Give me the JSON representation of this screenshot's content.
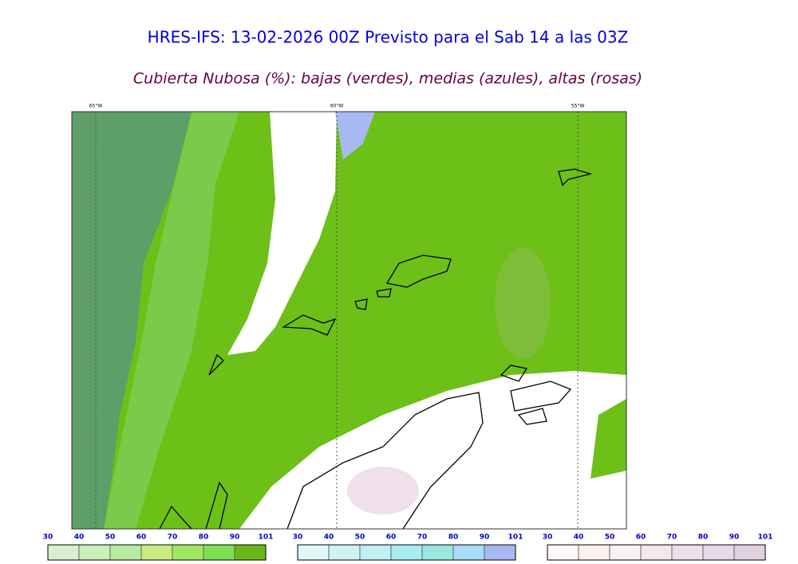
{
  "header": {
    "title": "HRES-IFS: 13-02-2026 00Z Previsto para el Sab 14 a las 03Z",
    "subtitle": "Cubierta Nubosa (%): bajas (verdes), medias (azules), altas (rosas)"
  },
  "map": {
    "lon_labels": [
      "65°W",
      "60°W",
      "55°W"
    ]
  },
  "colorbars": [
    {
      "labels": [
        30,
        40,
        50,
        60,
        70,
        80,
        90,
        101
      ],
      "colors": [
        "#d8f0d0",
        "#c8f0b8",
        "#b8eca0",
        "#c8ec80",
        "#a0e860",
        "#7ce050",
        "#68b818"
      ]
    },
    {
      "labels": [
        30,
        40,
        50,
        60,
        70,
        80,
        90,
        101
      ],
      "colors": [
        "#e0f8f8",
        "#d0f4f4",
        "#c0f0f4",
        "#a8ecf0",
        "#98e8e0",
        "#a8dcf8",
        "#a8b8f0"
      ]
    },
    {
      "labels": [
        30,
        40,
        50,
        60,
        70,
        80,
        90,
        101
      ],
      "colors": [
        "#fff8f8",
        "#fcf0f0",
        "#f8f0f4",
        "#f4e8ec",
        "#ece0ec",
        "#e8d8e8",
        "#e0d0e0"
      ]
    }
  ]
}
